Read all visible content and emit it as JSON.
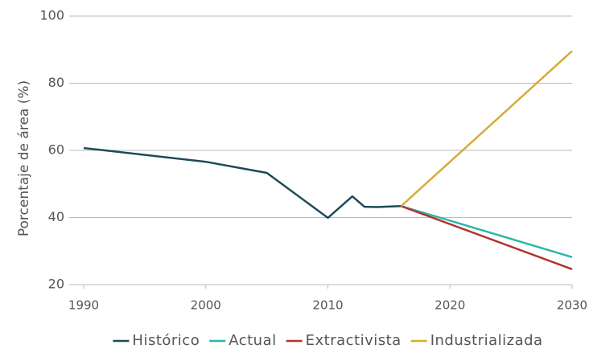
{
  "chart_data": {
    "type": "line",
    "y_label": "Porcentaje de área (%)",
    "xlim": [
      1990,
      2030
    ],
    "xticks": [
      1990,
      2000,
      2010,
      2020,
      2030
    ],
    "ylim": [
      20,
      100
    ],
    "yticks": [
      20,
      40,
      60,
      80,
      100
    ],
    "grid": true,
    "legend": "bottom",
    "series": [
      {
        "name": "Histórico",
        "color": "#1d4a5a",
        "x": [
          1990,
          2000,
          2005,
          2010,
          2012,
          2013,
          2014,
          2016
        ],
        "values": [
          60.7,
          56.6,
          53.3,
          39.9,
          46.3,
          43.2,
          43.1,
          43.4
        ]
      },
      {
        "name": "Actual",
        "color": "#2db6a8",
        "x": [
          2016,
          2030
        ],
        "values": [
          43.4,
          28.2
        ]
      },
      {
        "name": "Extractivista",
        "color": "#b3332e",
        "x": [
          2016,
          2030
        ],
        "values": [
          43.4,
          24.6
        ]
      },
      {
        "name": "Industrializada",
        "color": "#d9aa3a",
        "x": [
          2016,
          2030
        ],
        "values": [
          43.4,
          89.6
        ]
      }
    ]
  }
}
